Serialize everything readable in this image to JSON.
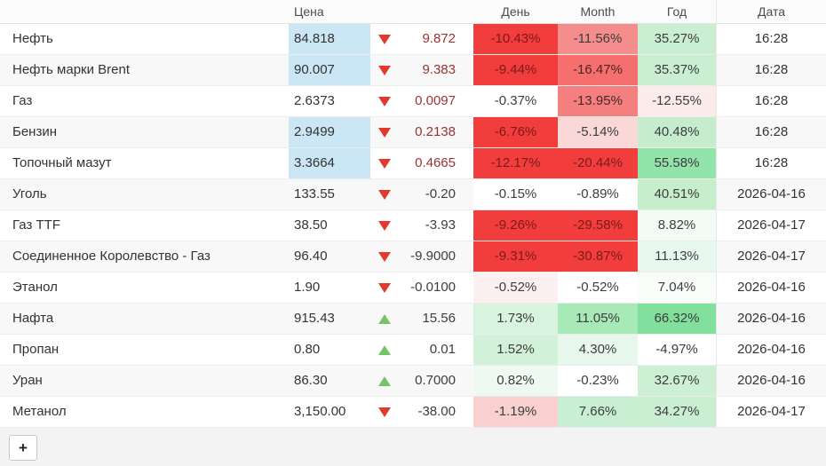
{
  "header": {
    "name": "",
    "price": "Цена",
    "day": "День",
    "month": "Month",
    "year": "Год",
    "date": "Дата"
  },
  "footer": {
    "add_label": "+"
  },
  "colors": {
    "price_highlight_bg": "#cbe6f5",
    "arrow_down": "#e03a2f",
    "arrow_up": "#76c468",
    "live_change_text": "#993333",
    "bright_red_bg": "#f23d3d",
    "bright_red_text": "#7a1a1a"
  },
  "rows": [
    {
      "name": "Нефть",
      "price": "84.818",
      "price_bg": "#cbe6f5",
      "direction": "down",
      "change": "9.872",
      "change_color": "#993333",
      "day": {
        "text": "-10.43%",
        "bg": "#f23d3d",
        "fg": "#7a1a1a"
      },
      "month": {
        "text": "-11.56%",
        "bg": "#f58d8d",
        "fg": "#3d3d3d"
      },
      "year": {
        "text": "35.27%",
        "bg": "#c9eed1",
        "fg": "#3d3d3d"
      },
      "date": "16:28"
    },
    {
      "name": "Нефть марки Brent",
      "price": "90.007",
      "price_bg": "#cbe6f5",
      "direction": "down",
      "change": "9.383",
      "change_color": "#993333",
      "day": {
        "text": "-9.44%",
        "bg": "#f23d3d",
        "fg": "#7a1a1a"
      },
      "month": {
        "text": "-16.47%",
        "bg": "#f66f6f",
        "fg": "#4a2626"
      },
      "year": {
        "text": "35.37%",
        "bg": "#c9eed1",
        "fg": "#3d3d3d"
      },
      "date": "16:28"
    },
    {
      "name": "Газ",
      "price": "2.6373",
      "price_bg": "",
      "direction": "down",
      "change": "0.0097",
      "change_color": "#993333",
      "day": {
        "text": "-0.37%",
        "bg": "#ffffff",
        "fg": "#3d3d3d"
      },
      "month": {
        "text": "-13.95%",
        "bg": "#f57f7f",
        "fg": "#4a2626"
      },
      "year": {
        "text": "-12.55%",
        "bg": "#fcebeb",
        "fg": "#3d3d3d"
      },
      "date": "16:28"
    },
    {
      "name": "Бензин",
      "price": "2.9499",
      "price_bg": "#cbe6f5",
      "direction": "down",
      "change": "0.2138",
      "change_color": "#993333",
      "day": {
        "text": "-6.76%",
        "bg": "#f23d3d",
        "fg": "#7a1a1a"
      },
      "month": {
        "text": "-5.14%",
        "bg": "#fbd8d8",
        "fg": "#3d3d3d"
      },
      "year": {
        "text": "40.48%",
        "bg": "#c5edcd",
        "fg": "#3d3d3d"
      },
      "date": "16:28"
    },
    {
      "name": "Топочный мазут",
      "price": "3.3664",
      "price_bg": "#cbe6f5",
      "direction": "down",
      "change": "0.4665",
      "change_color": "#993333",
      "day": {
        "text": "-12.17%",
        "bg": "#f23d3d",
        "fg": "#7a1a1a"
      },
      "month": {
        "text": "-20.44%",
        "bg": "#f23d3d",
        "fg": "#7a1a1a"
      },
      "year": {
        "text": "55.58%",
        "bg": "#93e4ab",
        "fg": "#3d3d3d"
      },
      "date": "16:28"
    },
    {
      "name": "Уголь",
      "price": "133.55",
      "price_bg": "",
      "direction": "down",
      "change": "-0.20",
      "change_color": "#3d3d3d",
      "day": {
        "text": "-0.15%",
        "bg": "#ffffff",
        "fg": "#3d3d3d"
      },
      "month": {
        "text": "-0.89%",
        "bg": "#ffffff",
        "fg": "#3d3d3d"
      },
      "year": {
        "text": "40.51%",
        "bg": "#c6edcc",
        "fg": "#3d3d3d"
      },
      "date": "2026-04-16"
    },
    {
      "name": "Газ TTF",
      "price": "38.50",
      "price_bg": "",
      "direction": "down",
      "change": "-3.93",
      "change_color": "#3d3d3d",
      "day": {
        "text": "-9.26%",
        "bg": "#f23d3d",
        "fg": "#7a1a1a"
      },
      "month": {
        "text": "-29.58%",
        "bg": "#f23d3d",
        "fg": "#7a1a1a"
      },
      "year": {
        "text": "8.82%",
        "bg": "#f2fbf4",
        "fg": "#3d3d3d"
      },
      "date": "2026-04-17"
    },
    {
      "name": "Соединенное Королевство - Газ",
      "price": "96.40",
      "price_bg": "",
      "direction": "down",
      "change": "-9.9000",
      "change_color": "#3d3d3d",
      "day": {
        "text": "-9.31%",
        "bg": "#f23d3d",
        "fg": "#7a1a1a"
      },
      "month": {
        "text": "-30.87%",
        "bg": "#f23d3d",
        "fg": "#7a1a1a"
      },
      "year": {
        "text": "11.13%",
        "bg": "#e9f8ee",
        "fg": "#3d3d3d"
      },
      "date": "2026-04-17"
    },
    {
      "name": "Этанол",
      "price": "1.90",
      "price_bg": "",
      "direction": "down",
      "change": "-0.0100",
      "change_color": "#3d3d3d",
      "day": {
        "text": "-0.52%",
        "bg": "#fdf0f0",
        "fg": "#3d3d3d"
      },
      "month": {
        "text": "-0.52%",
        "bg": "#ffffff",
        "fg": "#3d3d3d"
      },
      "year": {
        "text": "7.04%",
        "bg": "#f8fdf9",
        "fg": "#3d3d3d"
      },
      "date": "2026-04-16"
    },
    {
      "name": "Нафта",
      "price": "915.43",
      "price_bg": "",
      "direction": "up",
      "change": "15.56",
      "change_color": "#3d3d3d",
      "day": {
        "text": "1.73%",
        "bg": "#d8f3de",
        "fg": "#3d3d3d"
      },
      "month": {
        "text": "11.05%",
        "bg": "#a7e9b7",
        "fg": "#3d3d3d"
      },
      "year": {
        "text": "66.32%",
        "bg": "#81e09c",
        "fg": "#3d3d3d"
      },
      "date": "2026-04-16"
    },
    {
      "name": "Пропан",
      "price": "0.80",
      "price_bg": "",
      "direction": "up",
      "change": "0.01",
      "change_color": "#3d3d3d",
      "day": {
        "text": "1.52%",
        "bg": "#d2f1d9",
        "fg": "#3d3d3d"
      },
      "month": {
        "text": "4.30%",
        "bg": "#e8f7ec",
        "fg": "#3d3d3d"
      },
      "year": {
        "text": "-4.97%",
        "bg": "#ffffff",
        "fg": "#3d3d3d"
      },
      "date": "2026-04-16"
    },
    {
      "name": "Уран",
      "price": "86.30",
      "price_bg": "",
      "direction": "up",
      "change": "0.7000",
      "change_color": "#3d3d3d",
      "day": {
        "text": "0.82%",
        "bg": "#eef9f1",
        "fg": "#3d3d3d"
      },
      "month": {
        "text": "-0.23%",
        "bg": "#ffffff",
        "fg": "#3d3d3d"
      },
      "year": {
        "text": "32.67%",
        "bg": "#cdefd4",
        "fg": "#3d3d3d"
      },
      "date": "2026-04-16"
    },
    {
      "name": "Метанол",
      "price": "3,150.00",
      "price_bg": "",
      "direction": "down",
      "change": "-38.00",
      "change_color": "#3d3d3d",
      "day": {
        "text": "-1.19%",
        "bg": "#f9cfcf",
        "fg": "#3d3d3d"
      },
      "month": {
        "text": "7.66%",
        "bg": "#c9efd3",
        "fg": "#3d3d3d"
      },
      "year": {
        "text": "34.27%",
        "bg": "#c9eed2",
        "fg": "#3d3d3d"
      },
      "date": "2026-04-17"
    }
  ]
}
